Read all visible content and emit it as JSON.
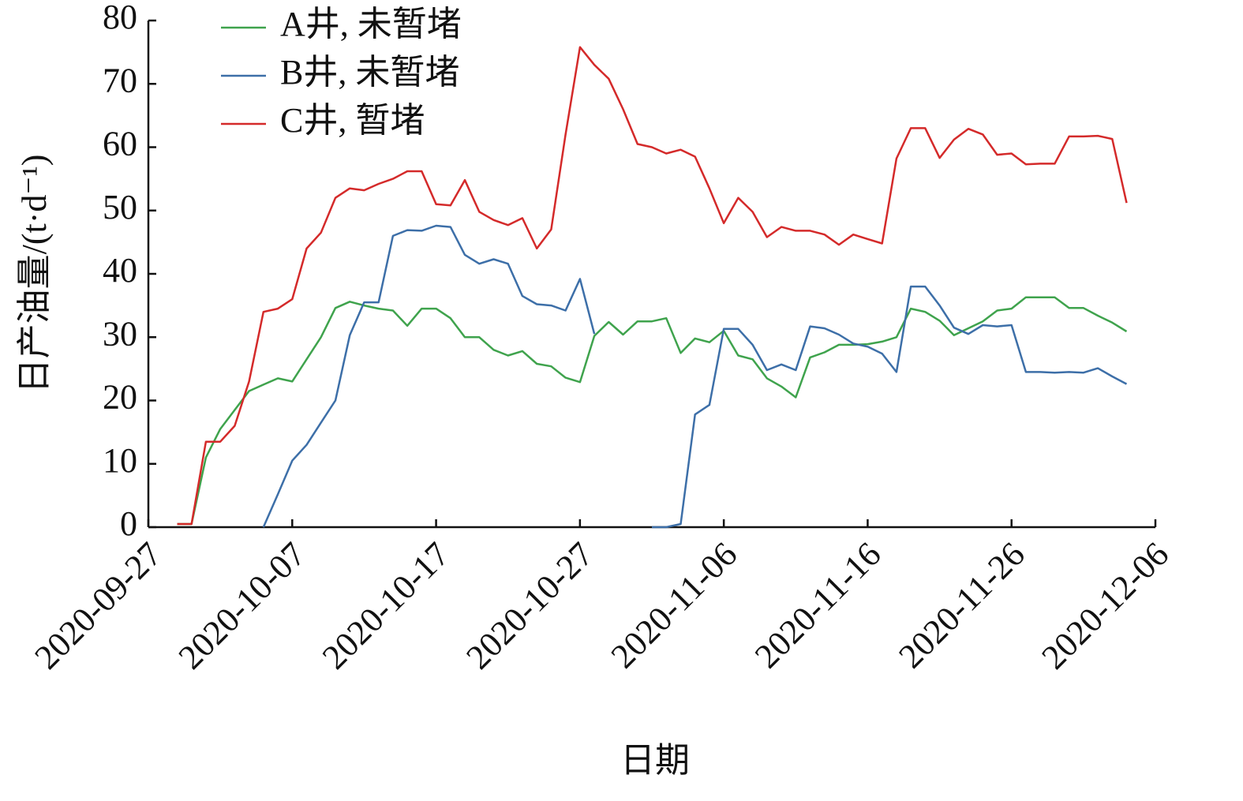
{
  "chart_data": {
    "type": "line",
    "y_label": "日产油量/(t·d⁻¹)",
    "x_label": "日期",
    "x": [
      "2020-09-29",
      "2020-09-30",
      "2020-10-01",
      "2020-10-02",
      "2020-10-03",
      "2020-10-04",
      "2020-10-05",
      "2020-10-06",
      "2020-10-07",
      "2020-10-08",
      "2020-10-09",
      "2020-10-10",
      "2020-10-11",
      "2020-10-12",
      "2020-10-13",
      "2020-10-14",
      "2020-10-15",
      "2020-10-16",
      "2020-10-17",
      "2020-10-18",
      "2020-10-19",
      "2020-10-20",
      "2020-10-21",
      "2020-10-22",
      "2020-10-23",
      "2020-10-24",
      "2020-10-25",
      "2020-10-26",
      "2020-10-27",
      "2020-10-28",
      "2020-10-29",
      "2020-10-30",
      "2020-10-31",
      "2020-11-01",
      "2020-11-02",
      "2020-11-03",
      "2020-11-04",
      "2020-11-05",
      "2020-11-06",
      "2020-11-07",
      "2020-11-08",
      "2020-11-09",
      "2020-11-10",
      "2020-11-11",
      "2020-11-12",
      "2020-11-13",
      "2020-11-14",
      "2020-11-15",
      "2020-11-16",
      "2020-11-17",
      "2020-11-18",
      "2020-11-19",
      "2020-11-20",
      "2020-11-21",
      "2020-11-22",
      "2020-11-23",
      "2020-11-24",
      "2020-11-25",
      "2020-11-26",
      "2020-11-27",
      "2020-11-28",
      "2020-11-29",
      "2020-11-30",
      "2020-12-01",
      "2020-12-02",
      "2020-12-03",
      "2020-12-04"
    ],
    "series": [
      {
        "name": "A井, 未暂堵",
        "color": "#3fa34d",
        "values": [
          0.5,
          0.5,
          11,
          15.5,
          18.5,
          21.5,
          22.5,
          23.5,
          23,
          26.5,
          30,
          34.6,
          35.6,
          35,
          34.5,
          34.2,
          31.8,
          34.5,
          34.5,
          33,
          30,
          30,
          28,
          27.1,
          27.8,
          25.8,
          25.4,
          23.6,
          22.9,
          30.2,
          32.4,
          30.4,
          32.5,
          32.5,
          33,
          27.5,
          29.8,
          29.2,
          31,
          27.1,
          26.5,
          23.5,
          22.2,
          20.5,
          26.8,
          27.6,
          28.8,
          28.8,
          28.9,
          29.3,
          30,
          34.5,
          34,
          32.6,
          30.3,
          31.4,
          32.5,
          34.2,
          34.5,
          36.3,
          36.3,
          36.3,
          34.6,
          34.6,
          33.4,
          32.3,
          30.9
        ]
      },
      {
        "name": "B井, 未暂堵",
        "color": "#3d6fa8",
        "values": [
          null,
          null,
          null,
          null,
          null,
          null,
          0,
          5.2,
          10.5,
          13,
          16.5,
          20,
          30.3,
          35.5,
          35.5,
          46,
          46.9,
          46.8,
          47.6,
          47.4,
          43,
          41.6,
          42.3,
          41.6,
          36.5,
          35.2,
          35,
          34.2,
          39.2,
          30.5,
          null,
          null,
          null,
          0,
          0,
          0.5,
          17.8,
          19.3,
          31.3,
          31.3,
          28.8,
          24.8,
          25.7,
          24.8,
          31.7,
          31.4,
          30.4,
          29,
          28.5,
          27.4,
          24.5,
          38,
          38,
          35,
          31.5,
          30.5,
          31.9,
          31.7,
          31.9,
          24.5,
          24.5,
          24.4,
          24.5,
          24.4,
          25.1,
          23.8,
          22.6
        ]
      },
      {
        "name": "C井, 暂堵",
        "color": "#d42a2a",
        "values": [
          0.5,
          0.5,
          13.5,
          13.5,
          16,
          23,
          34,
          34.5,
          36,
          44,
          46.5,
          52,
          53.5,
          53.2,
          54.2,
          55,
          56.2,
          56.2,
          51,
          50.8,
          54.8,
          49.8,
          48.5,
          47.7,
          48.8,
          44,
          47,
          62,
          75.8,
          73,
          70.8,
          66,
          60.5,
          60,
          59,
          59.6,
          58.5,
          53.5,
          48,
          52,
          49.8,
          45.8,
          47.4,
          46.8,
          46.8,
          46.2,
          44.6,
          46.2,
          45.5,
          44.8,
          58.2,
          63,
          63,
          58.3,
          61.2,
          62.9,
          62,
          58.8,
          59,
          57.3,
          57.4,
          57.4,
          61.7,
          61.7,
          61.8,
          61.3,
          51.2
        ]
      }
    ],
    "xlim": [
      "2020-09-27",
      "2020-12-06"
    ],
    "xticks": [
      "2020-09-27",
      "2020-10-07",
      "2020-10-17",
      "2020-10-27",
      "2020-11-06",
      "2020-11-16",
      "2020-11-26",
      "2020-12-06"
    ],
    "ylim": [
      0,
      80
    ],
    "yticks": [
      0,
      10,
      20,
      30,
      40,
      50,
      60,
      70,
      80
    ],
    "legend": "upper left",
    "grid": false
  }
}
